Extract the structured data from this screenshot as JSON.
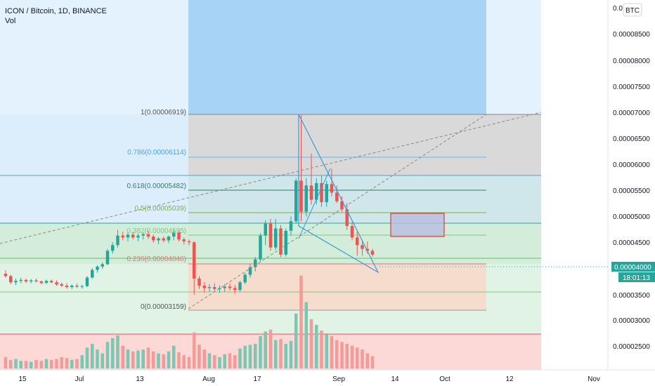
{
  "header": {
    "symbol": "ICON / Bitcoin, 1D, BINANCE",
    "volume_label": "Vol",
    "currency_badge": "BTC",
    "price_label": "0.00004000",
    "countdown_label": "18:01:13"
  },
  "colors": {
    "up": "#26a69a",
    "down": "#ef5350",
    "accent": "#2196f3",
    "price_tag": "#26a69a"
  },
  "chart_data": {
    "type": "candlestick",
    "title": "ICON / Bitcoin, 1D, BINANCE",
    "ylim": [
      2.1e-05,
      9.22e-05
    ],
    "y_ticks": [
      "0.00008500",
      "0.00008000",
      "0.00007500",
      "0.00007000",
      "0.00006500",
      "0.00006000",
      "0.00005500",
      "0.00005000",
      "0.00004500",
      "0.00003500",
      "0.00003000",
      "0.00002500"
    ],
    "y_tick_top_partial": "0.0",
    "x_ticks": [
      "15",
      "Jul",
      "13",
      "Aug",
      "17",
      "Sep",
      "14",
      "Oct",
      "12",
      "Nov"
    ],
    "fib_levels": [
      {
        "ratio": "1",
        "price": "0.00006919",
        "label": "1(0.00006919)"
      },
      {
        "ratio": "0.786",
        "price": "0.00006114",
        "label": "0.786(0.00006114)"
      },
      {
        "ratio": "0.618",
        "price": "0.00005482",
        "label": "0.618(0.00005482)"
      },
      {
        "ratio": "0.5",
        "price": "0.00005039",
        "label": "0.5(0.00005039)"
      },
      {
        "ratio": "0.382",
        "price": "0.00004595",
        "label": "0.382(0.00004595)"
      },
      {
        "ratio": "0.236",
        "price": "0.00004046",
        "label": "0.236(0.00004046)"
      },
      {
        "ratio": "0",
        "price": "0.00003159",
        "label": "0(0.00003159)"
      }
    ],
    "candles": [
      [
        3.6e-05,
        3.67e-05,
        3.52e-05,
        3.55e-05
      ],
      [
        3.55e-05,
        3.58e-05,
        3.38e-05,
        3.42e-05
      ],
      [
        3.42e-05,
        3.5e-05,
        3.36e-05,
        3.45e-05
      ],
      [
        3.45e-05,
        3.52e-05,
        3.4e-05,
        3.47e-05
      ],
      [
        3.47e-05,
        3.5e-05,
        3.41e-05,
        3.44e-05
      ],
      [
        3.44e-05,
        3.49e-05,
        3.4e-05,
        3.46e-05
      ],
      [
        3.46e-05,
        3.5e-05,
        3.42e-05,
        3.44e-05
      ],
      [
        3.44e-05,
        3.46e-05,
        3.38e-05,
        3.41e-05
      ],
      [
        3.41e-05,
        3.48e-05,
        3.38e-05,
        3.45e-05
      ],
      [
        3.45e-05,
        3.48e-05,
        3.4e-05,
        3.42e-05
      ],
      [
        3.42e-05,
        3.46e-05,
        3.35e-05,
        3.38e-05
      ],
      [
        3.38e-05,
        3.42e-05,
        3.32e-05,
        3.35e-05
      ],
      [
        3.35e-05,
        3.4e-05,
        3.29e-05,
        3.32e-05
      ],
      [
        3.32e-05,
        3.38e-05,
        3.28e-05,
        3.35e-05
      ],
      [
        3.35e-05,
        3.39e-05,
        3.3e-05,
        3.33e-05
      ],
      [
        3.33e-05,
        3.37e-05,
        3.29e-05,
        3.34e-05
      ],
      [
        3.34e-05,
        3.55e-05,
        3.32e-05,
        3.52e-05
      ],
      [
        3.52e-05,
        3.72e-05,
        3.49e-05,
        3.68e-05
      ],
      [
        3.68e-05,
        3.78e-05,
        3.62e-05,
        3.75e-05
      ],
      [
        3.75e-05,
        3.84e-05,
        3.7e-05,
        3.8e-05
      ],
      [
        3.8e-05,
        4.12e-05,
        3.78e-05,
        4.08e-05
      ],
      [
        4.08e-05,
        4.26e-05,
        4.02e-05,
        4.2e-05
      ],
      [
        4.2e-05,
        4.52e-05,
        4.15e-05,
        4.4e-05
      ],
      [
        4.4e-05,
        4.48e-05,
        4.3e-05,
        4.36e-05
      ],
      [
        4.36e-05,
        4.46e-05,
        4.28e-05,
        4.42e-05
      ],
      [
        4.42e-05,
        4.48e-05,
        4.32e-05,
        4.36e-05
      ],
      [
        4.36e-05,
        4.44e-05,
        4.28e-05,
        4.4e-05
      ],
      [
        4.4e-05,
        4.46e-05,
        4.32e-05,
        4.43e-05
      ],
      [
        4.43e-05,
        4.5e-05,
        4.33e-05,
        4.38e-05
      ],
      [
        4.38e-05,
        4.42e-05,
        4.25e-05,
        4.3e-05
      ],
      [
        4.3e-05,
        4.37e-05,
        4.22e-05,
        4.34e-05
      ],
      [
        4.34e-05,
        4.38e-05,
        4.26e-05,
        4.3e-05
      ],
      [
        4.3e-05,
        4.4e-05,
        4.24e-05,
        4.38e-05
      ],
      [
        4.38e-05,
        4.52e-05,
        4.3e-05,
        4.47e-05
      ],
      [
        4.47e-05,
        4.52e-05,
        4.28e-05,
        4.32e-05
      ],
      [
        4.32e-05,
        4.36e-05,
        4.22e-05,
        4.28e-05
      ],
      [
        4.28e-05,
        4.32e-05,
        4.2e-05,
        4.26e-05
      ],
      [
        4.26e-05,
        4.28e-05,
        3.16e-05,
        3.5e-05
      ],
      [
        3.5e-05,
        3.55e-05,
        3.28e-05,
        3.35e-05
      ],
      [
        3.35e-05,
        3.42e-05,
        3.2e-05,
        3.3e-05
      ],
      [
        3.3e-05,
        3.38e-05,
        3.22e-05,
        3.32e-05
      ],
      [
        3.32e-05,
        3.4e-05,
        3.24e-05,
        3.28e-05
      ],
      [
        3.28e-05,
        3.36e-05,
        3.2e-05,
        3.3e-05
      ],
      [
        3.3e-05,
        3.38e-05,
        3.22e-05,
        3.33e-05
      ],
      [
        3.33e-05,
        3.4e-05,
        3.25e-05,
        3.3e-05
      ],
      [
        3.3e-05,
        3.36e-05,
        3.18e-05,
        3.26e-05
      ],
      [
        3.26e-05,
        3.45e-05,
        3.22e-05,
        3.42e-05
      ],
      [
        3.42e-05,
        3.62e-05,
        3.38e-05,
        3.58e-05
      ],
      [
        3.58e-05,
        3.8e-05,
        3.52e-05,
        3.74e-05
      ],
      [
        3.74e-05,
        3.95e-05,
        3.65e-05,
        3.9e-05
      ],
      [
        3.9e-05,
        4.45e-05,
        3.86e-05,
        4.4e-05
      ],
      [
        4.4e-05,
        4.72e-05,
        4.2e-05,
        4.65e-05
      ],
      [
        4.65e-05,
        4.75e-05,
        4.08e-05,
        4.15e-05
      ],
      [
        4.15e-05,
        4.75e-05,
        4.1e-05,
        4.55e-05
      ],
      [
        4.55e-05,
        4.62e-05,
        3.95e-05,
        4e-05
      ],
      [
        4e-05,
        4.55e-05,
        3.96e-05,
        4.5e-05
      ],
      [
        4.5e-05,
        4.8e-05,
        4.4e-05,
        4.7e-05
      ],
      [
        4.7e-05,
        5.6e-05,
        4.65e-05,
        5.55e-05
      ],
      [
        5.55e-05,
        6.92e-05,
        4.7e-05,
        4.9e-05
      ],
      [
        4.9e-05,
        5.6e-05,
        4.8e-05,
        5.45e-05
      ],
      [
        5.45e-05,
        6.12e-05,
        5.05e-05,
        5.15e-05
      ],
      [
        5.15e-05,
        5.6e-05,
        5.05e-05,
        5.5e-05
      ],
      [
        5.5e-05,
        5.65e-05,
        5e-05,
        5.1e-05
      ],
      [
        5.1e-05,
        5.55e-05,
        5e-05,
        5.48e-05
      ],
      [
        5.48e-05,
        5.8e-05,
        5.22e-05,
        5.3e-05
      ],
      [
        5.3e-05,
        5.45e-05,
        5.08e-05,
        5.12e-05
      ],
      [
        5.12e-05,
        5.22e-05,
        4.9e-05,
        4.95e-05
      ],
      [
        4.95e-05,
        5.08e-05,
        4.52e-05,
        4.6e-05
      ],
      [
        4.6e-05,
        4.68e-05,
        4.3e-05,
        4.36e-05
      ],
      [
        4.36e-05,
        4.48e-05,
        3.98e-05,
        4.2e-05
      ],
      [
        4.2e-05,
        4.3e-05,
        3.98e-05,
        4.12e-05
      ],
      [
        4.12e-05,
        4.28e-05,
        4.02e-05,
        4.08e-05
      ],
      [
        4.08e-05,
        4.12e-05,
        3.96e-05,
        4e-05
      ]
    ],
    "volume": [
      1.2,
      0.9,
      1.0,
      0.8,
      0.8,
      0.7,
      0.9,
      0.8,
      1.0,
      0.9,
      1.0,
      1.2,
      1.1,
      0.9,
      1.0,
      1.4,
      2.2,
      2.6,
      2.0,
      1.6,
      2.8,
      3.2,
      3.5,
      2.4,
      2.0,
      1.8,
      1.9,
      2.0,
      2.2,
      1.8,
      1.6,
      1.5,
      1.8,
      2.4,
      1.7,
      1.4,
      1.2,
      3.8,
      2.5,
      2.0,
      1.6,
      1.4,
      1.2,
      1.5,
      1.6,
      1.4,
      2.1,
      2.4,
      2.5,
      2.6,
      3.4,
      3.9,
      4.1,
      3.0,
      3.1,
      2.6,
      2.9,
      5.8,
      9.8,
      7.0,
      5.2,
      4.6,
      4.0,
      3.6,
      3.4,
      3.0,
      2.8,
      2.6,
      2.4,
      2.2,
      2.0,
      1.6,
      1.3
    ],
    "price_last": "0.00004000"
  }
}
